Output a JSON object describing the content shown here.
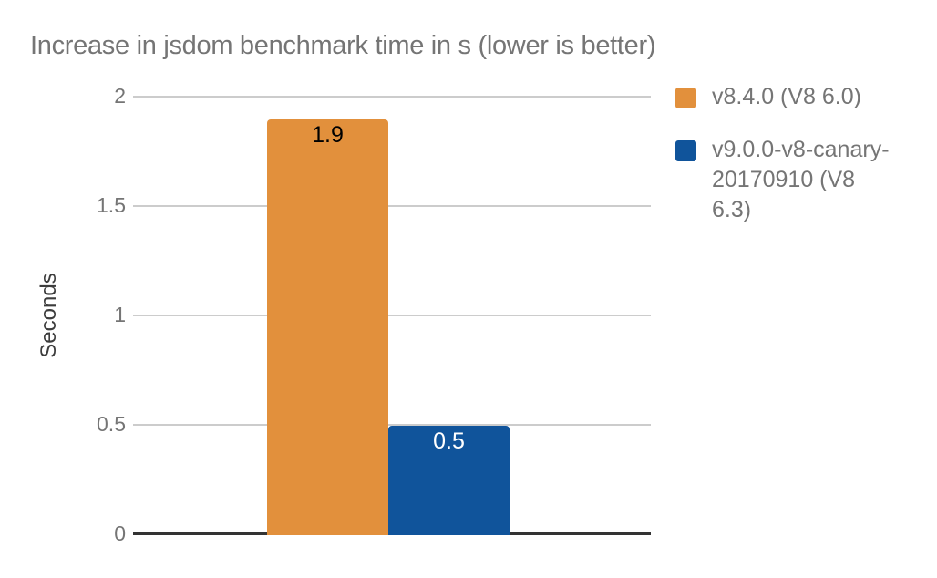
{
  "colors": {
    "title_text": "#757575",
    "tick_text": "#757575",
    "axis_title_text": "#3c3c3c",
    "legend_text": "#757575",
    "gridline": "#cccccc",
    "zero_line": "#333333",
    "background": "#ffffff",
    "series_orange": "#e2903c",
    "series_blue": "#10549b"
  },
  "chart_data": {
    "type": "bar",
    "title": "Increase in jsdom benchmark time in s (lower is better)",
    "xlabel": "",
    "ylabel": "Seconds",
    "ylim": [
      0,
      2
    ],
    "yticks": [
      0,
      0.5,
      1,
      1.5,
      2
    ],
    "ytick_labels": [
      "0",
      "0.5",
      "1",
      "1.5",
      "2"
    ],
    "grid": true,
    "legend_position": "right",
    "categories": [
      ""
    ],
    "series": [
      {
        "name": "v8.4.0 (V8 6.0)",
        "legend_lines": [
          "v8.4.0 (V8 6.0)"
        ],
        "values": [
          1.9
        ],
        "value_labels": [
          "1.9"
        ],
        "color": "#e2903c",
        "value_label_color": "#000000"
      },
      {
        "name": "v9.0.0-v8-canary-20170910 (V8 6.3)",
        "legend_lines": [
          "v9.0.0-v8-canary-",
          "20170910 (V8",
          "6.3)"
        ],
        "values": [
          0.5
        ],
        "value_labels": [
          "0.5"
        ],
        "color": "#10549b",
        "value_label_color": "#ffffff"
      }
    ]
  }
}
